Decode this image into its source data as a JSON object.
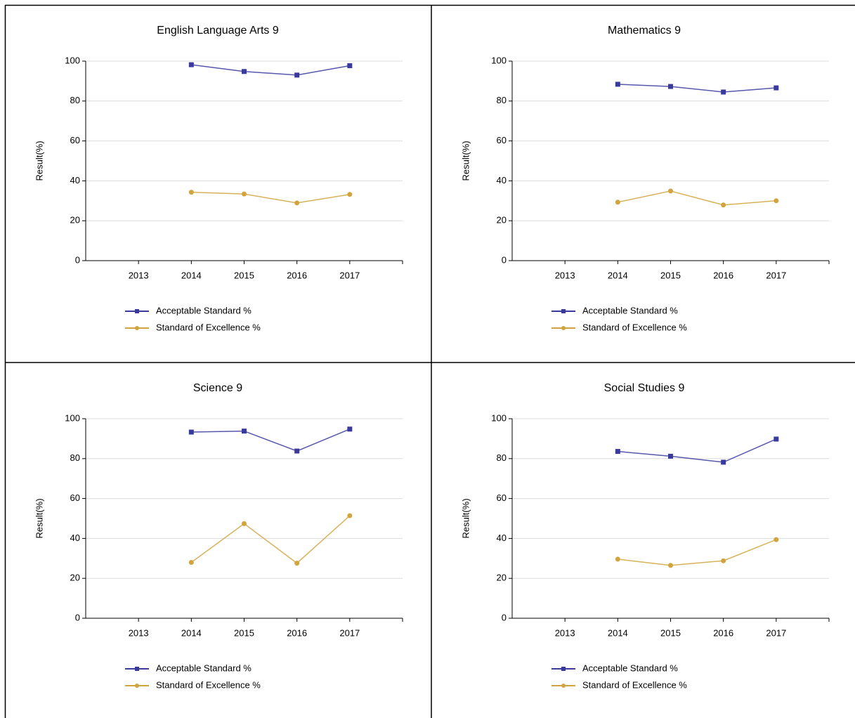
{
  "chart_data": [
    {
      "type": "line",
      "title": "English Language Arts 9",
      "y_label": "Result(%)",
      "categories": [
        "2013",
        "2014",
        "2015",
        "2016",
        "2017"
      ],
      "series": [
        {
          "name": "Acceptable Standard %",
          "color": "#3a3a9e",
          "marker": "square",
          "values": [
            null,
            98.2,
            94.8,
            93,
            97.7
          ]
        },
        {
          "name": "Standard of Excellence %",
          "color": "#d1a43e",
          "marker": "circle",
          "values": [
            null,
            34.3,
            33.4,
            28.9,
            33.2
          ]
        }
      ],
      "ylim": [
        0,
        100
      ],
      "yticks": [
        0,
        20,
        40,
        60,
        80,
        100
      ],
      "grid": true,
      "legend": "bottom"
    },
    {
      "type": "line",
      "title": "Mathematics 9",
      "y_label": "Result(%)",
      "categories": [
        "2013",
        "2014",
        "2015",
        "2016",
        "2017"
      ],
      "series": [
        {
          "name": "Acceptable Standard %",
          "color": "#3a3a9e",
          "marker": "square",
          "values": [
            null,
            88.4,
            87.3,
            84.5,
            86.6
          ]
        },
        {
          "name": "Standard of Excellence %",
          "color": "#d1a43e",
          "marker": "circle",
          "values": [
            null,
            29.3,
            34.9,
            27.9,
            30
          ]
        }
      ],
      "ylim": [
        0,
        100
      ],
      "yticks": [
        0,
        20,
        40,
        60,
        80,
        100
      ],
      "grid": true,
      "legend": "bottom"
    },
    {
      "type": "line",
      "title": "Science 9",
      "y_label": "Result(%)",
      "categories": [
        "2013",
        "2014",
        "2015",
        "2016",
        "2017"
      ],
      "series": [
        {
          "name": "Acceptable Standard %",
          "color": "#3a3a9e",
          "marker": "square",
          "values": [
            null,
            93.3,
            93.8,
            83.8,
            94.8
          ]
        },
        {
          "name": "Standard of Excellence %",
          "color": "#d1a43e",
          "marker": "circle",
          "values": [
            null,
            28,
            47.4,
            27.6,
            51.4
          ]
        }
      ],
      "ylim": [
        0,
        100
      ],
      "yticks": [
        0,
        20,
        40,
        60,
        80,
        100
      ],
      "grid": true,
      "legend": "bottom"
    },
    {
      "type": "line",
      "title": "Social Studies 9",
      "y_label": "Result(%)",
      "categories": [
        "2013",
        "2014",
        "2015",
        "2016",
        "2017"
      ],
      "series": [
        {
          "name": "Acceptable Standard %",
          "color": "#3a3a9e",
          "marker": "square",
          "values": [
            null,
            83.6,
            81.2,
            78.2,
            89.8
          ]
        },
        {
          "name": "Standard of Excellence %",
          "color": "#d1a43e",
          "marker": "circle",
          "values": [
            null,
            29.6,
            26.5,
            28.8,
            39.4
          ]
        }
      ],
      "ylim": [
        0,
        100
      ],
      "yticks": [
        0,
        20,
        40,
        60,
        80,
        100
      ],
      "grid": true,
      "legend": "bottom"
    }
  ]
}
